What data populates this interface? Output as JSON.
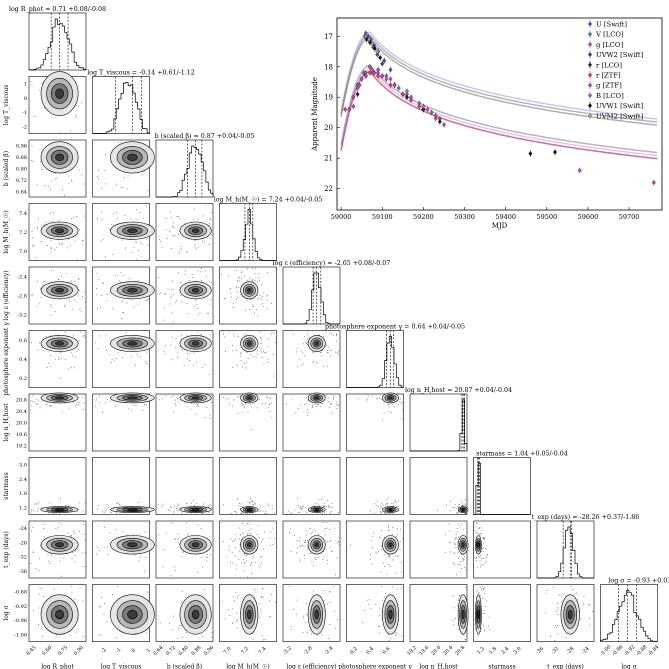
{
  "chart_data": [
    {
      "type": "corner",
      "parameters": [
        {
          "key": "log_Rphot",
          "axis_label": "log R_phot",
          "title": "log R_phot = 0.71 +0.08/-0.08",
          "median": 0.71,
          "plus": 0.08,
          "minus": 0.08,
          "range": [
            0.42,
            0.96
          ],
          "ticks": [
            0.45,
            0.6,
            0.75,
            0.9
          ],
          "tick_labels": [
            "0.45",
            "0.60",
            "0.75",
            "0.90"
          ]
        },
        {
          "key": "log_Tviscous",
          "axis_label": "log T_viscous",
          "title": "log T_viscous = -0.14 +0.61/-1.12",
          "median": -0.14,
          "plus": 0.61,
          "minus": 1.12,
          "range": [
            -2.8,
            1.0
          ],
          "ticks": [
            -2,
            -1,
            0,
            1
          ],
          "tick_labels": [
            "-2",
            "-1",
            "0",
            "1"
          ]
        },
        {
          "key": "b",
          "axis_label": "b (scaled β)",
          "title": "b (scaled β) = 0.87 +0.04/-0.05",
          "median": 0.87,
          "plus": 0.04,
          "minus": 0.05,
          "range": [
            0.62,
            0.98
          ],
          "ticks": [
            0.64,
            0.72,
            0.8,
            0.88,
            0.96
          ],
          "tick_labels": [
            "0.64",
            "0.72",
            "0.80",
            "0.88",
            "0.96"
          ]
        },
        {
          "key": "log_Mh",
          "axis_label": "log M_h(M_☉)",
          "title": "log M_h(M_☉) = 7.24 +0.04/-0.05",
          "median": 7.24,
          "plus": 0.04,
          "minus": 0.05,
          "range": [
            6.9,
            7.55
          ],
          "ticks": [
            7.0,
            7.2,
            7.4
          ],
          "tick_labels": [
            "7.0",
            "7.2",
            "7.4"
          ]
        },
        {
          "key": "log_eps",
          "axis_label": "log ε (efficiency)",
          "title": "log ε (efficiency) = -2.65 +0.08/-0.07",
          "median": -2.65,
          "plus": 0.08,
          "minus": 0.07,
          "range": [
            -3.3,
            -2.2
          ],
          "ticks": [
            -3.2,
            -2.8,
            -2.4
          ],
          "tick_labels": [
            "-3.2",
            "-2.8",
            "-2.4"
          ]
        },
        {
          "key": "Gamma",
          "axis_label": "photosphere exponent γ",
          "title": "photosphere exponent γ = 0.64 +0.04/-0.05",
          "median": 0.64,
          "plus": 0.04,
          "minus": 0.05,
          "range": [
            0.1,
            0.8
          ],
          "ticks": [
            0.2,
            0.4,
            0.6
          ],
          "tick_labels": [
            "0.2",
            "0.4",
            "0.6"
          ]
        },
        {
          "key": "log_nH",
          "axis_label": "log n_H,host",
          "title": "log n_H,host = 20.87 +0.04/-0.04",
          "median": 20.87,
          "plus": 0.04,
          "minus": 0.04,
          "range": [
            19.1,
            21.0
          ],
          "ticks": [
            19.2,
            19.6,
            20.0,
            20.4,
            20.8
          ],
          "tick_labels": [
            "19.2",
            "19.6",
            "20.0",
            "20.4",
            "20.8"
          ]
        },
        {
          "key": "starmass",
          "axis_label": "starmass",
          "title": "starmass = 1.04 +0.05/-0.04",
          "median": 1.04,
          "plus": 0.05,
          "minus": 0.04,
          "range": [
            0.8,
            3.6
          ],
          "ticks": [
            1.2,
            1.8,
            2.4,
            3.0
          ],
          "tick_labels": [
            "1.2",
            "1.8",
            "2.4",
            "3.0"
          ]
        },
        {
          "key": "t_exp",
          "axis_label": "t_exp (days)",
          "title": "t_exp (days) = -28.26 +0.37/-1.86",
          "median": -28.26,
          "plus": 0.37,
          "minus": 1.86,
          "range": [
            -37,
            -22
          ],
          "ticks": [
            -36,
            -32,
            -28,
            -24
          ],
          "tick_labels": [
            "-36",
            "-32",
            "-28",
            "-24"
          ]
        },
        {
          "key": "log_sigma",
          "axis_label": "log σ",
          "title": "log σ = -0.93 +0.03/-0.03",
          "median": -0.93,
          "plus": 0.03,
          "minus": 0.03,
          "range": [
            -1.02,
            -0.83
          ],
          "ticks": [
            -1.0,
            -0.96,
            -0.92,
            -0.88,
            -0.84
          ],
          "tick_labels": [
            "-1.00",
            "-0.96",
            "-0.92",
            "-0.88",
            "-0.84"
          ]
        }
      ],
      "ylabel_ticks": {
        "log_Tviscous": [
          "-2",
          "-1",
          "0",
          "1"
        ],
        "b": [
          "0.64",
          "0.72",
          "0.80",
          "0.88",
          "0.96"
        ],
        "log_Mh": [
          "7.0",
          "7.2",
          "7.4"
        ],
        "log_eps": [
          "-3.2",
          "-2.8",
          "-2.4"
        ],
        "Gamma": [
          "0.2",
          "0.4",
          "0.6"
        ],
        "log_nH": [
          "19.2",
          "19.6",
          "20.0",
          "20.4",
          "20.8"
        ],
        "starmass": [
          "1.2",
          "1.8",
          "2.4",
          "3.0"
        ],
        "t_exp": [
          "-36",
          "-32",
          "-28",
          "-24"
        ],
        "log_sigma": [
          "-1.00",
          "-0.96",
          "-0.92",
          "-0.88"
        ]
      }
    },
    {
      "type": "scatter",
      "xlabel": "MJD",
      "ylabel": "Apparent Magnitude",
      "xlim": [
        58990,
        59780
      ],
      "ylim": [
        22.7,
        16.4
      ],
      "y_inverted": true,
      "xticks": [
        59000,
        59100,
        59200,
        59300,
        59400,
        59500,
        59600,
        59700
      ],
      "yticks": [
        17,
        18,
        19,
        20,
        21,
        22
      ],
      "legend_position": "top-right",
      "series": [
        {
          "name": "U [Swift]",
          "color": "#5b4fd8",
          "marker": "diamond",
          "x": [
            59060,
            59066,
            59072,
            59080,
            59090,
            59105,
            59120
          ],
          "y": [
            16.9,
            17.0,
            17.1,
            17.3,
            17.5,
            17.8,
            18.1
          ]
        },
        {
          "name": "V [LCO]",
          "color": "#3a8fa0",
          "marker": "diamond",
          "x": [
            59040,
            59055,
            59070,
            59090,
            59110,
            59140,
            59160,
            59190,
            59220,
            59240
          ],
          "y": [
            18.6,
            18.2,
            18.0,
            18.1,
            18.3,
            18.7,
            18.9,
            19.2,
            19.5,
            19.7
          ]
        },
        {
          "name": "g [LCO]",
          "color": "#d04a9a",
          "marker": "diamond",
          "x": [
            59030,
            59045,
            59060,
            59075,
            59090,
            59110,
            59130,
            59150,
            59170,
            59200,
            59230,
            59250
          ],
          "y": [
            19.3,
            18.6,
            18.2,
            18.1,
            18.2,
            18.4,
            18.6,
            18.9,
            19.1,
            19.4,
            19.7,
            19.9
          ]
        },
        {
          "name": "UVW2 [Swift]",
          "color": "#3c3c8c",
          "marker": "diamond",
          "x": [
            59058,
            59064,
            59070,
            59078,
            59088,
            59100
          ],
          "y": [
            17.0,
            17.05,
            17.15,
            17.35,
            17.6,
            17.9
          ]
        },
        {
          "name": "r [LCO]",
          "color": "#222222",
          "marker": "diamond",
          "x": [
            59040,
            59060,
            59080,
            59100,
            59130,
            59160,
            59200,
            59240
          ],
          "y": [
            18.9,
            18.3,
            18.2,
            18.3,
            18.6,
            19.0,
            19.4,
            19.8
          ]
        },
        {
          "name": "r [ZTF]",
          "color": "#e83a5a",
          "marker": "diamond",
          "x": [
            59010,
            59030,
            59050,
            59070,
            59090,
            59120,
            59150,
            59190,
            59230
          ],
          "y": [
            19.4,
            19.0,
            18.4,
            18.2,
            18.3,
            18.6,
            18.9,
            19.3,
            19.6
          ]
        },
        {
          "name": "g [ZTF]",
          "color": "#c83fc2",
          "marker": "diamond",
          "x": [
            59020,
            59040,
            59060,
            59080,
            59100,
            59130,
            59170,
            59210,
            59580,
            59760
          ],
          "y": [
            19.4,
            18.7,
            18.3,
            18.2,
            18.3,
            18.6,
            19.0,
            19.4,
            21.4,
            21.8
          ]
        },
        {
          "name": "B [LCO]",
          "color": "#b45fa8",
          "marker": "diamond",
          "x": [
            59050,
            59070,
            59090,
            59120,
            59160,
            59200
          ],
          "y": [
            18.4,
            18.0,
            18.1,
            18.4,
            18.8,
            19.3
          ]
        },
        {
          "name": "UVW1 [Swift]",
          "color": "#111111",
          "marker": "diamond",
          "x": [
            59062,
            59070,
            59082,
            59095,
            59460,
            59520
          ],
          "y": [
            17.1,
            17.2,
            17.4,
            17.7,
            20.85,
            20.8
          ]
        },
        {
          "name": "UVM2 [Swift]",
          "color": "#a9ad6a",
          "marker": "diamond",
          "x": [
            59060,
            59068,
            59076,
            59088
          ],
          "y": [
            17.0,
            17.1,
            17.25,
            17.5
          ]
        }
      ]
    }
  ]
}
